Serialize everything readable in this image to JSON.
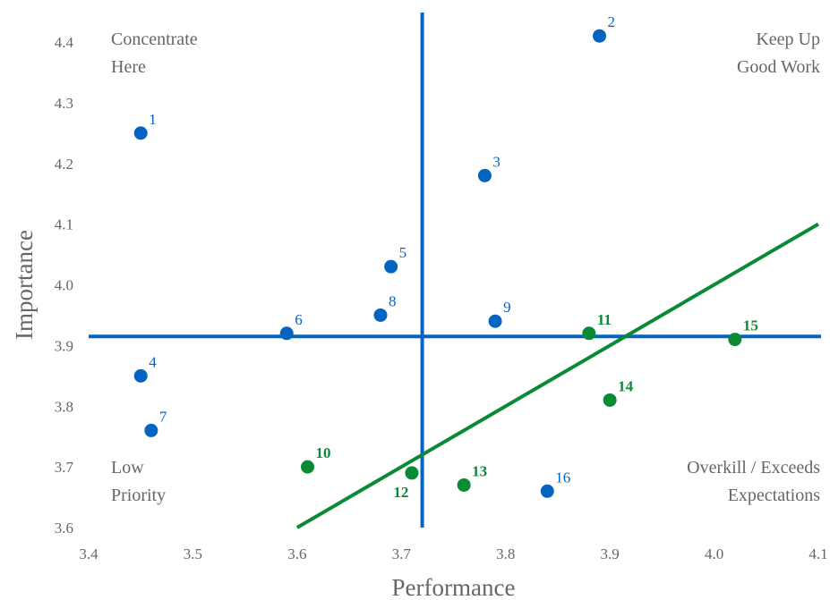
{
  "chart_data": {
    "type": "scatter",
    "xlabel": "Performance",
    "ylabel": "Importance",
    "xlim": [
      3.4,
      4.1
    ],
    "ylim": [
      3.6,
      4.4
    ],
    "x_ticks": [
      "3.4",
      "3.5",
      "3.6",
      "3.7",
      "3.8",
      "3.9",
      "4.0",
      "4.1"
    ],
    "y_ticks": [
      "3.6",
      "3.7",
      "3.8",
      "3.9",
      "4.0",
      "4.1",
      "4.2",
      "4.3",
      "4.4"
    ],
    "grid": false,
    "crosshair": {
      "x": 3.72,
      "y": 3.915
    },
    "quadrant_labels": {
      "top_left": [
        "Concentrate",
        "Here"
      ],
      "top_right": [
        "Keep Up",
        "Good Work"
      ],
      "bottom_left": [
        "Low",
        "Priority"
      ],
      "bottom_right": [
        "Overkill / Exceeds",
        "Expectations"
      ]
    },
    "diagonal_line": {
      "x": [
        3.6,
        4.1
      ],
      "y": [
        3.6,
        4.1
      ]
    },
    "series": [
      {
        "color": "#0563c1",
        "points": [
          {
            "label": "1",
            "x": 3.45,
            "y": 4.25
          },
          {
            "label": "2",
            "x": 3.89,
            "y": 4.41
          },
          {
            "label": "3",
            "x": 3.78,
            "y": 4.18
          },
          {
            "label": "4",
            "x": 3.45,
            "y": 3.85
          },
          {
            "label": "5",
            "x": 3.69,
            "y": 4.03
          },
          {
            "label": "6",
            "x": 3.59,
            "y": 3.92
          },
          {
            "label": "7",
            "x": 3.46,
            "y": 3.76
          },
          {
            "label": "8",
            "x": 3.68,
            "y": 3.95
          },
          {
            "label": "9",
            "x": 3.79,
            "y": 3.94
          },
          {
            "label": "16",
            "x": 3.84,
            "y": 3.66
          }
        ]
      },
      {
        "color": "#0b8a36",
        "points": [
          {
            "label": "10",
            "x": 3.61,
            "y": 3.7
          },
          {
            "label": "11",
            "x": 3.88,
            "y": 3.92
          },
          {
            "label": "12",
            "x": 3.71,
            "y": 3.69
          },
          {
            "label": "13",
            "x": 3.76,
            "y": 3.67
          },
          {
            "label": "14",
            "x": 3.9,
            "y": 3.81
          },
          {
            "label": "15",
            "x": 4.02,
            "y": 3.91
          }
        ]
      }
    ],
    "colors": {
      "axis_lines": "#0563c1",
      "diagonal": "#0b8a36",
      "text": "#666666"
    }
  }
}
